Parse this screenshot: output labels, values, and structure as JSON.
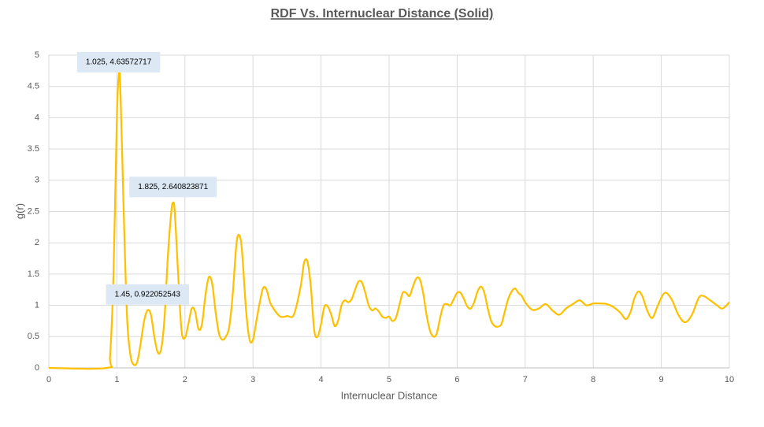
{
  "chart_data": {
    "type": "line",
    "title": "RDF Vs. Internuclear Distance (Solid)",
    "x_label": "Internuclear Distance",
    "y_label": "g(r)",
    "xlim": [
      0,
      10
    ],
    "xticks": [
      0,
      1,
      2,
      3,
      4,
      5,
      6,
      7,
      8,
      9,
      10
    ],
    "ylim": [
      0,
      5
    ],
    "yticks": [
      0,
      0.5,
      1,
      1.5,
      2,
      2.5,
      3,
      3.5,
      4,
      4.5,
      5
    ],
    "grid": true,
    "series": [
      {
        "color": "#ffc000",
        "x": [
          0,
          0.85,
          0.9,
          0.95,
          1.0,
          1.025,
          1.05,
          1.1,
          1.15,
          1.2,
          1.25,
          1.3,
          1.35,
          1.4,
          1.45,
          1.5,
          1.55,
          1.6,
          1.65,
          1.7,
          1.75,
          1.8,
          1.825,
          1.85,
          1.9,
          1.95,
          2.0,
          2.05,
          2.1,
          2.15,
          2.2,
          2.25,
          2.3,
          2.35,
          2.4,
          2.45,
          2.5,
          2.55,
          2.6,
          2.65,
          2.7,
          2.75,
          2.78,
          2.82,
          2.85,
          2.9,
          2.95,
          3.0,
          3.05,
          3.1,
          3.15,
          3.2,
          3.25,
          3.3,
          3.4,
          3.5,
          3.6,
          3.7,
          3.75,
          3.8,
          3.85,
          3.9,
          3.95,
          4.0,
          4.05,
          4.1,
          4.15,
          4.2,
          4.25,
          4.3,
          4.35,
          4.4,
          4.45,
          4.5,
          4.55,
          4.6,
          4.65,
          4.7,
          4.75,
          4.8,
          4.85,
          4.9,
          4.95,
          5.0,
          5.05,
          5.1,
          5.15,
          5.2,
          5.25,
          5.3,
          5.35,
          5.4,
          5.45,
          5.5,
          5.55,
          5.6,
          5.65,
          5.7,
          5.75,
          5.8,
          5.85,
          5.9,
          5.95,
          6.0,
          6.05,
          6.1,
          6.15,
          6.2,
          6.25,
          6.3,
          6.35,
          6.4,
          6.45,
          6.5,
          6.55,
          6.6,
          6.65,
          6.7,
          6.75,
          6.8,
          6.85,
          6.9,
          6.95,
          7.0,
          7.1,
          7.2,
          7.3,
          7.4,
          7.5,
          7.6,
          7.7,
          7.8,
          7.9,
          8.0,
          8.1,
          8.2,
          8.3,
          8.4,
          8.48,
          8.55,
          8.6,
          8.66,
          8.72,
          8.8,
          8.87,
          8.95,
          9.05,
          9.15,
          9.25,
          9.35,
          9.45,
          9.55,
          9.62,
          9.72,
          9.82,
          9.9,
          10
        ],
        "values": [
          0,
          0,
          0.2,
          1.5,
          4.0,
          4.63572717,
          4.5,
          2.5,
          0.8,
          0.2,
          0.05,
          0.1,
          0.4,
          0.75,
          0.922052543,
          0.85,
          0.5,
          0.25,
          0.3,
          0.8,
          1.8,
          2.5,
          2.640823871,
          2.5,
          1.5,
          0.6,
          0.48,
          0.7,
          0.95,
          0.9,
          0.62,
          0.7,
          1.15,
          1.45,
          1.35,
          0.9,
          0.55,
          0.45,
          0.5,
          0.65,
          1.15,
          1.9,
          2.12,
          2.05,
          1.7,
          0.9,
          0.45,
          0.45,
          0.75,
          1.05,
          1.28,
          1.25,
          1.05,
          0.95,
          0.82,
          0.83,
          0.85,
          1.3,
          1.68,
          1.7,
          1.3,
          0.6,
          0.5,
          0.7,
          0.98,
          0.98,
          0.85,
          0.67,
          0.75,
          1.0,
          1.08,
          1.05,
          1.1,
          1.25,
          1.38,
          1.37,
          1.2,
          1.0,
          0.92,
          0.95,
          0.9,
          0.82,
          0.8,
          0.82,
          0.75,
          0.8,
          1.0,
          1.2,
          1.2,
          1.15,
          1.3,
          1.43,
          1.42,
          1.2,
          0.85,
          0.6,
          0.5,
          0.55,
          0.8,
          1.0,
          1.02,
          1.0,
          1.1,
          1.2,
          1.2,
          1.1,
          0.98,
          0.95,
          1.05,
          1.22,
          1.3,
          1.2,
          0.95,
          0.75,
          0.67,
          0.66,
          0.7,
          0.9,
          1.1,
          1.22,
          1.27,
          1.2,
          1.15,
          1.05,
          0.93,
          0.95,
          1.02,
          0.92,
          0.85,
          0.95,
          1.02,
          1.08,
          1.0,
          1.03,
          1.03,
          1.02,
          0.97,
          0.88,
          0.78,
          0.9,
          1.1,
          1.22,
          1.15,
          0.9,
          0.8,
          1.0,
          1.2,
          1.1,
          0.85,
          0.73,
          0.85,
          1.12,
          1.15,
          1.08,
          1.0,
          0.95,
          1.05
        ]
      }
    ],
    "annotations": [
      {
        "label": "1.025, 4.63572717",
        "x": 1.025,
        "y": 4.63572717
      },
      {
        "label": "1.825, 2.640823871",
        "x": 1.825,
        "y": 2.640823871
      },
      {
        "label": "1.45, 0.922052543",
        "x": 1.45,
        "y": 0.922052543
      }
    ]
  }
}
